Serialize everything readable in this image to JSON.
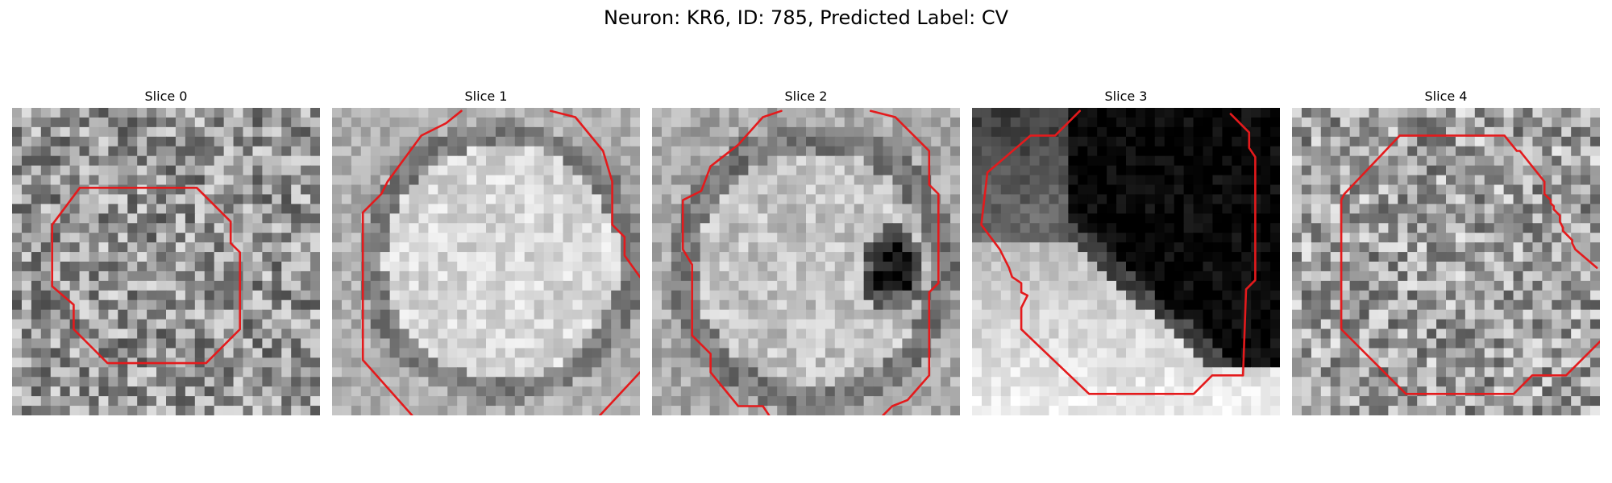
{
  "figure": {
    "title": "Neuron: KR6, ID: 785, Predicted Label: CV"
  },
  "panels": [
    {
      "title": "Slice 0",
      "scene": "noise",
      "base_gray": 150,
      "contour_color": "#e41a1c",
      "contour": [
        [
          [
            0.22,
            0.26
          ],
          [
            0.6,
            0.26
          ],
          [
            0.71,
            0.37
          ],
          [
            0.71,
            0.44
          ],
          [
            0.74,
            0.47
          ],
          [
            0.74,
            0.72
          ],
          [
            0.63,
            0.83
          ],
          [
            0.31,
            0.83
          ],
          [
            0.2,
            0.72
          ],
          [
            0.2,
            0.64
          ],
          [
            0.13,
            0.58
          ],
          [
            0.13,
            0.38
          ],
          [
            0.22,
            0.26
          ]
        ]
      ]
    },
    {
      "title": "Slice 1",
      "scene": "bright-disc",
      "base_gray": 200,
      "contour_color": "#e41a1c",
      "contour": [
        [
          [
            0.42,
            0.01
          ],
          [
            0.37,
            0.05
          ],
          [
            0.29,
            0.09
          ],
          [
            0.18,
            0.24
          ],
          [
            0.16,
            0.28
          ],
          [
            0.1,
            0.34
          ],
          [
            0.1,
            0.82
          ],
          [
            0.26,
            1.0
          ]
        ],
        [
          [
            0.71,
            0.01
          ],
          [
            0.79,
            0.03
          ],
          [
            0.88,
            0.14
          ],
          [
            0.91,
            0.24
          ],
          [
            0.91,
            0.25
          ],
          [
            0.91,
            0.38
          ],
          [
            0.95,
            0.42
          ],
          [
            0.95,
            0.48
          ],
          [
            1.0,
            0.55
          ]
        ],
        [
          [
            0.87,
            1.0
          ],
          [
            1.0,
            0.86
          ]
        ]
      ]
    },
    {
      "title": "Slice 2",
      "scene": "disc-with-dark-spot",
      "base_gray": 190,
      "contour_color": "#e41a1c",
      "contour": [
        [
          [
            0.42,
            0.01
          ],
          [
            0.36,
            0.03
          ],
          [
            0.28,
            0.12
          ],
          [
            0.19,
            0.19
          ],
          [
            0.16,
            0.27
          ],
          [
            0.1,
            0.3
          ],
          [
            0.1,
            0.46
          ],
          [
            0.13,
            0.51
          ],
          [
            0.13,
            0.74
          ],
          [
            0.19,
            0.8
          ],
          [
            0.19,
            0.86
          ],
          [
            0.28,
            0.97
          ],
          [
            0.36,
            0.97
          ],
          [
            0.38,
            1.0
          ]
        ],
        [
          [
            0.71,
            0.01
          ],
          [
            0.79,
            0.03
          ],
          [
            0.9,
            0.14
          ],
          [
            0.9,
            0.25
          ],
          [
            0.93,
            0.28
          ],
          [
            0.93,
            0.57
          ],
          [
            0.9,
            0.6
          ],
          [
            0.9,
            0.87
          ],
          [
            0.83,
            0.95
          ],
          [
            0.78,
            0.97
          ],
          [
            0.75,
            1.0
          ]
        ]
      ]
    },
    {
      "title": "Slice 3",
      "scene": "dark-upper-right",
      "base_gray": 120,
      "contour_color": "#e41a1c",
      "contour": [
        [
          [
            0.35,
            0.01
          ],
          [
            0.27,
            0.09
          ],
          [
            0.19,
            0.09
          ],
          [
            0.05,
            0.21
          ],
          [
            0.03,
            0.38
          ],
          [
            0.09,
            0.46
          ],
          [
            0.12,
            0.52
          ],
          [
            0.13,
            0.55
          ],
          [
            0.16,
            0.57
          ],
          [
            0.16,
            0.6
          ],
          [
            0.18,
            0.61
          ],
          [
            0.16,
            0.65
          ],
          [
            0.16,
            0.72
          ],
          [
            0.38,
            0.93
          ],
          [
            0.72,
            0.93
          ],
          [
            0.78,
            0.87
          ],
          [
            0.88,
            0.87
          ],
          [
            0.89,
            0.59
          ],
          [
            0.92,
            0.56
          ],
          [
            0.92,
            0.16
          ],
          [
            0.9,
            0.13
          ],
          [
            0.9,
            0.08
          ],
          [
            0.84,
            0.02
          ]
        ]
      ]
    },
    {
      "title": "Slice 4",
      "scene": "noise",
      "base_gray": 160,
      "contour_color": "#e41a1c",
      "contour": [
        [
          [
            0.35,
            0.09
          ],
          [
            0.69,
            0.09
          ],
          [
            0.73,
            0.14
          ],
          [
            0.74,
            0.14
          ],
          [
            0.82,
            0.24
          ],
          [
            0.82,
            0.28
          ],
          [
            0.84,
            0.3
          ],
          [
            0.84,
            0.31
          ],
          [
            0.85,
            0.32
          ],
          [
            0.85,
            0.33
          ],
          [
            0.87,
            0.35
          ],
          [
            0.87,
            0.37
          ],
          [
            0.88,
            0.39
          ],
          [
            0.88,
            0.4
          ],
          [
            0.91,
            0.43
          ],
          [
            0.91,
            0.44
          ],
          [
            0.92,
            0.46
          ],
          [
            0.99,
            0.52
          ]
        ],
        [
          [
            0.35,
            0.09
          ],
          [
            0.17,
            0.28
          ],
          [
            0.16,
            0.3
          ],
          [
            0.16,
            0.72
          ],
          [
            0.37,
            0.93
          ],
          [
            0.72,
            0.93
          ],
          [
            0.78,
            0.87
          ],
          [
            0.89,
            0.87
          ],
          [
            1.0,
            0.76
          ]
        ]
      ]
    }
  ]
}
